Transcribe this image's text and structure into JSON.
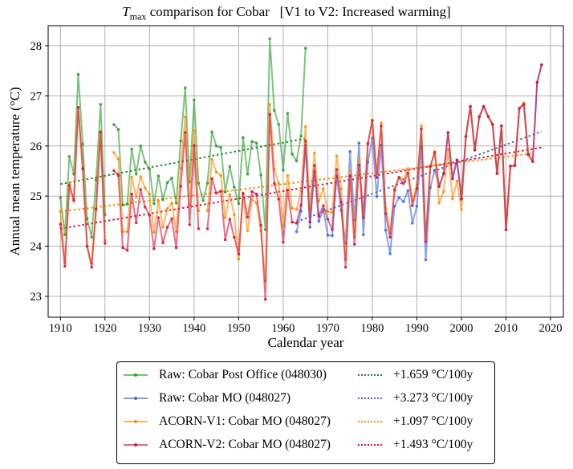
{
  "chart_data": {
    "type": "line",
    "title_var": "T",
    "title_sub": "max",
    "title_rest": " comparison for Cobar   [V1 to V2: Increased warming]",
    "xlabel": "Calendar year",
    "ylabel": "Annual mean temperature (°C)",
    "xlim": [
      1907,
      2022
    ],
    "ylim": [
      22.7,
      28.4
    ],
    "xticks": [
      1910,
      1920,
      1930,
      1940,
      1950,
      1960,
      1970,
      1980,
      1990,
      2000,
      2010,
      2020
    ],
    "yticks": [
      23,
      24,
      25,
      26,
      27,
      28
    ],
    "grid": true,
    "legend_position": "below",
    "series": [
      {
        "name": "Raw: Cobar Post Office (048030)",
        "color": "#2ca02c",
        "x": [
          1910,
          1911,
          1912,
          1913,
          1914,
          1915,
          1916,
          1917,
          1918,
          1919,
          1920,
          null,
          1922,
          1923,
          1924,
          1925,
          1926,
          1927,
          1928,
          1929,
          1930,
          1931,
          1932,
          1933,
          1934,
          1935,
          1936,
          1937,
          1938,
          1939,
          1940,
          1941,
          1942,
          1943,
          1944,
          1945,
          1946,
          1947,
          1948,
          1949,
          1950,
          1951,
          1952,
          1953,
          1954,
          1955,
          1956,
          1957,
          1958,
          1959,
          1960,
          1961,
          1962,
          1963,
          1964,
          1965
        ],
        "values": [
          24.97,
          24.23,
          25.79,
          25.44,
          27.43,
          26.04,
          24.55,
          24.18,
          25.32,
          26.83,
          24.63,
          null,
          26.43,
          26.33,
          24.82,
          24.84,
          25.94,
          25.44,
          26.0,
          25.68,
          25.54,
          24.85,
          25.4,
          24.93,
          25.27,
          25.36,
          24.86,
          26.1,
          27.16,
          25.28,
          26.92,
          25.26,
          24.91,
          25.26,
          26.28,
          26.0,
          25.97,
          25.08,
          25.59,
          25.18,
          24.85,
          26.17,
          25.44,
          26.09,
          26.06,
          25.42,
          24.33,
          28.14,
          26.71,
          26.43,
          25.52,
          26.65,
          25.84,
          25.7,
          26.2,
          27.95
        ]
      },
      {
        "name": "Raw: Cobar MO (048027)",
        "color": "#4169e1",
        "x": [
          1963,
          1964,
          1965,
          1966,
          1967,
          1968,
          1969,
          1970,
          1971,
          1972,
          1973,
          1974,
          1975,
          1976,
          1977,
          1978,
          1979,
          1980,
          1981,
          1982,
          1983,
          1984,
          1985,
          1986,
          1987,
          1988,
          1989,
          1990,
          1991,
          1992,
          1993,
          1994,
          1995,
          1996,
          1997,
          1998,
          1999,
          2000,
          2001,
          2002,
          2003,
          2004,
          2005,
          2006,
          2007,
          2008,
          2009,
          2010,
          2011,
          2012,
          2013,
          2014,
          2015,
          2016,
          2017,
          2018
        ],
        "values": [
          24.29,
          24.7,
          26.02,
          24.38,
          25.49,
          24.5,
          24.73,
          24.22,
          24.21,
          25.4,
          24.72,
          24.06,
          25.89,
          24.52,
          26.06,
          24.23,
          25.68,
          26.16,
          24.99,
          26.02,
          24.32,
          23.85,
          24.8,
          24.97,
          24.89,
          25.11,
          24.46,
          24.8,
          25.98,
          23.73,
          25.17,
          25.52,
          25.19,
          25.45,
          26.27,
          25.35,
          25.72,
          24.94,
          26.19,
          26.79,
          25.92,
          26.58,
          26.79,
          26.59,
          26.43,
          25.45,
          26.4,
          24.33,
          25.6,
          25.61,
          26.75,
          26.83,
          25.83,
          25.69,
          27.27,
          27.62
        ]
      },
      {
        "name": "ACORN-V1: Cobar MO (048027)",
        "color": "#ff8c00",
        "x": [
          1910,
          1911,
          1912,
          1913,
          1914,
          1915,
          1916,
          1917,
          1918,
          1919,
          1920,
          null,
          1922,
          1923,
          1924,
          1925,
          1926,
          1927,
          1928,
          1929,
          1930,
          1931,
          1932,
          1933,
          1934,
          1935,
          1936,
          1937,
          1938,
          1939,
          1940,
          1941,
          null,
          1943,
          1944,
          1945,
          1946,
          1947,
          1948,
          1949,
          1950,
          1951,
          1952,
          1953,
          1954,
          1955,
          1956,
          1957,
          1958,
          1959,
          1960,
          1961,
          1962,
          1963,
          1964,
          1965,
          1966,
          1967,
          1968,
          1969,
          1970,
          1971,
          1972,
          1973,
          1974,
          1975,
          1976,
          1977,
          1978,
          1979,
          1980,
          1981,
          1982,
          1983,
          1984,
          1985,
          1986,
          1987,
          1988,
          1989,
          1990,
          1991,
          1992,
          1993,
          1994,
          1995,
          1996,
          1997,
          1998,
          1999,
          2000,
          2001,
          2002,
          2003,
          2004,
          2005,
          2006,
          2007,
          2008,
          2009,
          2010,
          2011,
          2012,
          2013,
          2014,
          2015,
          2016
        ],
        "values": [
          24.7,
          23.67,
          25.25,
          24.9,
          26.77,
          25.55,
          24.0,
          23.66,
          24.74,
          26.28,
          24.12,
          null,
          25.87,
          25.74,
          24.29,
          24.29,
          25.38,
          24.98,
          25.39,
          25.16,
          25.04,
          24.28,
          24.9,
          24.38,
          24.75,
          24.86,
          24.29,
          25.56,
          26.58,
          24.82,
          26.31,
          24.71,
          null,
          24.71,
          25.73,
          25.48,
          25.41,
          24.57,
          25.03,
          24.63,
          23.74,
          25.03,
          24.31,
          24.93,
          24.87,
          24.31,
          23.31,
          26.83,
          25.54,
          25.26,
          24.41,
          25.41,
          24.76,
          24.73,
          25.1,
          26.39,
          24.76,
          25.86,
          24.9,
          25.15,
          24.69,
          24.68,
          25.8,
          25.15,
          23.74,
          25.51,
          24.18,
          25.76,
          24.63,
          26.04,
          26.52,
          25.45,
          26.46,
          24.76,
          24.26,
          25.15,
          25.38,
          25.33,
          25.55,
          24.91,
          25.22,
          26.4,
          24.15,
          25.59,
          25.89,
          24.86,
          25.09,
          25.93,
          24.95,
          25.3,
          24.73,
          26.19,
          26.79,
          25.92,
          26.58,
          26.79,
          26.59,
          26.43,
          25.45,
          26.4,
          24.33,
          25.6,
          25.61,
          26.75,
          26.86,
          25.83,
          25.69
        ]
      },
      {
        "name": "ACORN-V2: Cobar MO (048027)",
        "color": "#dc143c",
        "x": [
          1910,
          1911,
          1912,
          1913,
          1914,
          1915,
          1916,
          1917,
          1918,
          1919,
          1920,
          null,
          1922,
          1923,
          1924,
          1925,
          1926,
          1927,
          1928,
          1929,
          1930,
          1931,
          1932,
          1933,
          1934,
          1935,
          1936,
          1937,
          1938,
          1939,
          1940,
          1941,
          null,
          1943,
          1944,
          1945,
          1946,
          1947,
          1948,
          1949,
          1950,
          1951,
          1952,
          1953,
          1954,
          1955,
          1956,
          1957,
          1958,
          1959,
          1960,
          1961,
          1962,
          1963,
          1964,
          1965,
          1966,
          1967,
          1968,
          1969,
          1970,
          1971,
          1972,
          1973,
          1974,
          1975,
          1976,
          1977,
          1978,
          1979,
          1980,
          1981,
          1982,
          1983,
          1984,
          1985,
          1986,
          1987,
          1988,
          1989,
          1990,
          1991,
          1992,
          1993,
          1994,
          1995,
          1996,
          1997,
          1998,
          1999,
          2000,
          2001,
          2002,
          2003,
          2004,
          2005,
          2006,
          2007,
          2008,
          2009,
          2010,
          2011,
          2012,
          2013,
          2014,
          2015,
          2016,
          2017,
          2018
        ],
        "values": [
          24.44,
          23.6,
          25.21,
          24.92,
          26.77,
          25.55,
          24.0,
          23.58,
          24.74,
          26.28,
          24.06,
          null,
          25.51,
          25.41,
          23.97,
          23.92,
          25.04,
          24.47,
          25.13,
          24.78,
          24.62,
          23.95,
          24.57,
          24.07,
          24.38,
          24.55,
          23.97,
          25.2,
          26.27,
          24.43,
          26.01,
          24.35,
          null,
          24.35,
          25.35,
          25.06,
          25.1,
          24.13,
          24.54,
          24.18,
          23.84,
          25.06,
          24.58,
          25.09,
          25.04,
          24.42,
          22.94,
          26.63,
          25.25,
          24.94,
          24.08,
          25.12,
          24.48,
          24.46,
          24.82,
          26.1,
          24.48,
          25.61,
          24.6,
          24.81,
          24.54,
          24.33,
          25.53,
          24.88,
          23.58,
          25.4,
          24.04,
          25.62,
          24.57,
          26.05,
          26.51,
          25.37,
          26.4,
          24.65,
          24.18,
          25.12,
          25.37,
          25.25,
          25.46,
          24.81,
          25.15,
          26.34,
          24.09,
          25.59,
          25.87,
          25.19,
          25.45,
          26.27,
          25.35,
          25.72,
          24.94,
          26.19,
          26.79,
          25.92,
          26.58,
          26.79,
          26.59,
          26.43,
          25.45,
          26.4,
          24.33,
          25.6,
          25.61,
          26.75,
          26.83,
          25.83,
          25.69,
          27.27,
          27.62
        ]
      }
    ],
    "trends": [
      {
        "label": "+1.659 °C/100y",
        "color": "#228b22",
        "x": [
          1910,
          1965
        ],
        "y": [
          25.24,
          26.15
        ]
      },
      {
        "label": "+3.273 °C/100y",
        "color": "#4169e1",
        "x": [
          1963,
          2018
        ],
        "y": [
          24.49,
          26.29
        ]
      },
      {
        "label": "+1.097 °C/100y",
        "color": "#ff8c00",
        "x": [
          1910,
          2016
        ],
        "y": [
          24.69,
          25.85
        ]
      },
      {
        "label": "+1.493 °C/100y",
        "color": "#dc143c",
        "x": [
          1910,
          2018
        ],
        "y": [
          24.35,
          25.97
        ]
      }
    ]
  }
}
